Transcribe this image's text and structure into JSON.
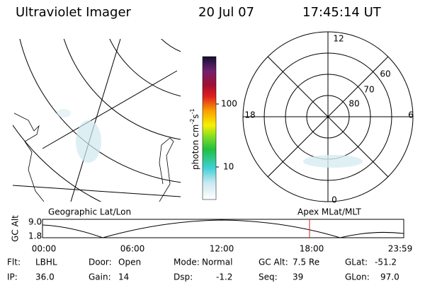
{
  "header": {
    "title": "Ultraviolet Imager",
    "date": "20 Jul 07",
    "time": "17:45:14 UT"
  },
  "colorbar": {
    "label": "photon cm",
    "exp1": "-2",
    "unit2": "s",
    "exp2": "-1",
    "ticks": [
      "100",
      "10"
    ]
  },
  "polar": {
    "mlt_labels": [
      "12",
      "6",
      "18",
      "0"
    ],
    "lat_labels": [
      "60",
      "70",
      "80"
    ]
  },
  "panels": {
    "left": "Geographic Lat/Lon",
    "right": "Apex MLat/MLT"
  },
  "timeline": {
    "y_label": "GC Alt",
    "y_ticks": [
      "9.0",
      "1.8"
    ],
    "x_ticks": [
      "00:00",
      "06:00",
      "12:00",
      "18:00",
      "23:59"
    ]
  },
  "footer": {
    "row1": [
      [
        "Flt:",
        "LBHL"
      ],
      [
        "Door:",
        "Open"
      ],
      [
        "Mode:",
        "Normal"
      ],
      [
        "GC Alt:",
        "7.5 Re"
      ],
      [
        "GLat:",
        "-51.2"
      ]
    ],
    "row2": [
      [
        "IP:",
        "36.0"
      ],
      [
        "Gain:",
        "14"
      ],
      [
        "Dsp:",
        "-1.2"
      ],
      [
        "Seq:",
        "39"
      ],
      [
        "GLon:",
        "97.0"
      ]
    ]
  }
}
